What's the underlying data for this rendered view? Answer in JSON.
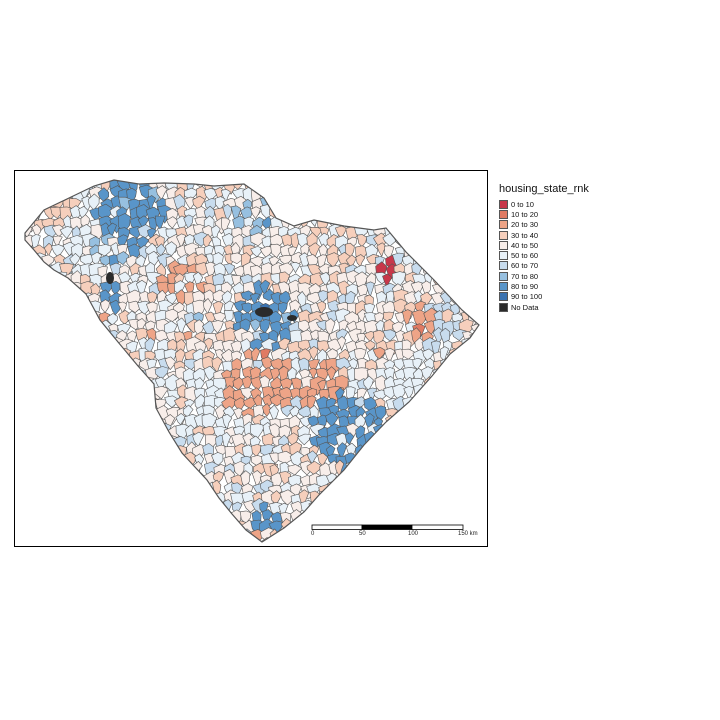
{
  "legend": {
    "title": "housing_state_rnk",
    "items": [
      {
        "label": "0 to 10",
        "color": "#c8374a"
      },
      {
        "label": "10 to 20",
        "color": "#e07a63"
      },
      {
        "label": "20 to 30",
        "color": "#eea487"
      },
      {
        "label": "30 to 40",
        "color": "#f6cfbc"
      },
      {
        "label": "40 to 50",
        "color": "#f8eeea"
      },
      {
        "label": "50 to 60",
        "color": "#e8f1f8"
      },
      {
        "label": "60 to 70",
        "color": "#c8dcee"
      },
      {
        "label": "70 to 80",
        "color": "#97c0e0"
      },
      {
        "label": "80 to 90",
        "color": "#5995c9"
      },
      {
        "label": "90 to 100",
        "color": "#3b73b1"
      },
      {
        "label": "No Data",
        "color": "#2b2b2b"
      }
    ]
  },
  "scalebar": {
    "labels": [
      "0",
      "50",
      "100",
      "150 km"
    ]
  },
  "colors": {
    "border": "#555555",
    "frame": "#000000"
  }
}
